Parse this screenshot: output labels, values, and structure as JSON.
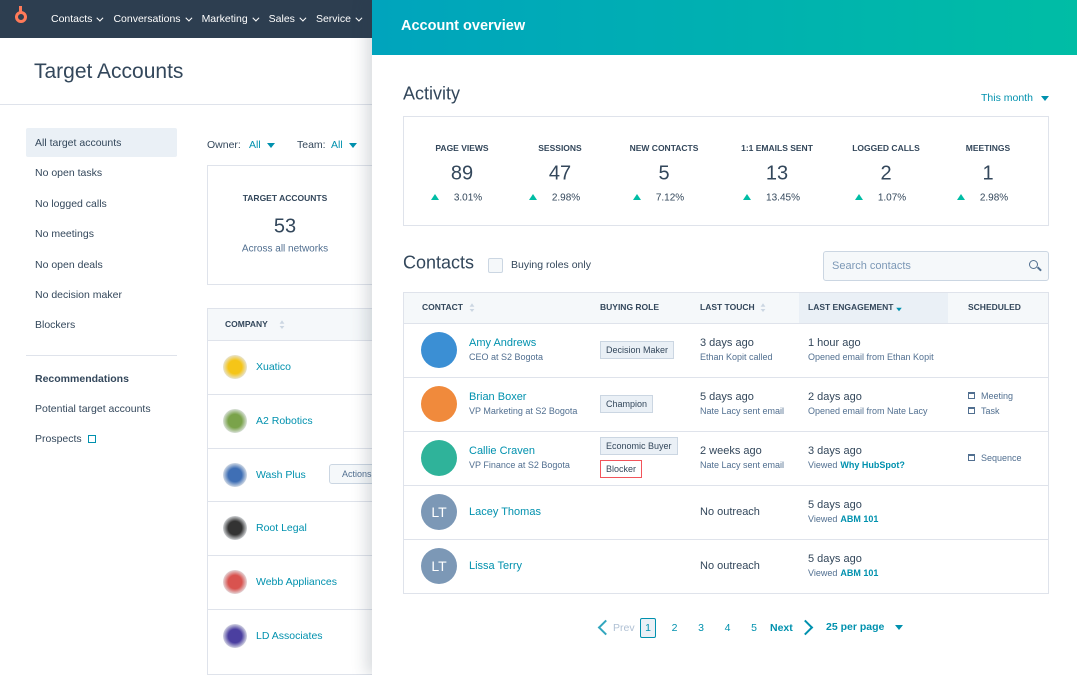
{
  "nav": {
    "items": [
      "Contacts",
      "Conversations",
      "Marketing",
      "Sales",
      "Service"
    ]
  },
  "page": {
    "title": "Target Accounts",
    "sidebar": {
      "filters": [
        "All target accounts",
        "No open tasks",
        "No logged calls",
        "No meetings",
        "No open deals",
        "No decision maker",
        "Blockers"
      ],
      "recommendations_heading": "Recommendations",
      "recommendations": [
        "Potential target accounts",
        "Prospects"
      ]
    },
    "filter_bar": {
      "owner_label": "Owner:",
      "owner_value": "All",
      "team_label": "Team:",
      "team_value": "All"
    },
    "summary": {
      "label": "TARGET ACCOUNTS",
      "value": "53",
      "sub": "Across all networks"
    },
    "companies": {
      "header": "COMPANY",
      "rows": [
        "Xuatico",
        "A2 Robotics",
        "Wash Plus",
        "Root Legal",
        "Webb Appliances",
        "LD Associates"
      ],
      "actions_button": "Actions"
    }
  },
  "panel": {
    "title": "Account overview",
    "activity": {
      "heading": "Activity",
      "period": "This month",
      "metrics": [
        {
          "label": "PAGE VIEWS",
          "value": "89",
          "change": "3.01%"
        },
        {
          "label": "SESSIONS",
          "value": "47",
          "change": "2.98%"
        },
        {
          "label": "NEW CONTACTS",
          "value": "5",
          "change": "7.12%"
        },
        {
          "label": "1:1 EMAILS SENT",
          "value": "13",
          "change": "13.45%"
        },
        {
          "label": "LOGGED CALLS",
          "value": "2",
          "change": "1.07%"
        },
        {
          "label": "MEETINGS",
          "value": "1",
          "change": "2.98%"
        }
      ]
    },
    "contacts": {
      "heading": "Contacts",
      "checkbox_label": "Buying roles only",
      "search_placeholder": "Search contacts",
      "columns": [
        "CONTACT",
        "BUYING ROLE",
        "LAST TOUCH",
        "LAST ENGAGEMENT",
        "SCHEDULED"
      ],
      "rows": [
        {
          "name": "Amy Andrews",
          "title": "CEO at S2 Bogota",
          "roles": [
            {
              "label": "Decision Maker"
            }
          ],
          "last_touch": "3 days ago",
          "last_touch_detail": "Ethan Kopit called",
          "last_engagement": "1 hour ago",
          "engagement_detail": "Opened email from Ethan Kopit",
          "scheduled": []
        },
        {
          "name": "Brian Boxer",
          "title": "VP Marketing at S2 Bogota",
          "roles": [
            {
              "label": "Champion"
            }
          ],
          "last_touch": "5 days ago",
          "last_touch_detail": "Nate Lacy sent email",
          "last_engagement": "2 days ago",
          "engagement_detail": "Opened email from Nate Lacy",
          "scheduled": [
            "Meeting",
            "Task"
          ]
        },
        {
          "name": "Callie Craven",
          "title": "VP Finance at S2 Bogota",
          "roles": [
            {
              "label": "Economic Buyer"
            },
            {
              "label": "Blocker",
              "border_color": "#f2545b"
            }
          ],
          "last_touch": "2 weeks ago",
          "last_touch_detail": "Nate Lacy sent email",
          "last_engagement": "3 days ago",
          "engagement_detail": "Viewed",
          "engagement_link": "Why HubSpot?",
          "scheduled": [
            "Sequence"
          ]
        },
        {
          "name": "Lacey Thomas",
          "initials": "LT",
          "roles": [],
          "last_touch": "No outreach",
          "last_engagement": "5 days ago",
          "engagement_detail": "Viewed",
          "engagement_link": "ABM 101",
          "scheduled": []
        },
        {
          "name": "Lissa Terry",
          "initials": "LT",
          "roles": [],
          "last_touch": "No outreach",
          "last_engagement": "5 days ago",
          "engagement_detail": "Viewed",
          "engagement_link": "ABM 101",
          "scheduled": []
        }
      ]
    },
    "pagination": {
      "prev": "Prev",
      "pages": [
        "1",
        "2",
        "3",
        "4",
        "5"
      ],
      "current": 0,
      "next": "Next",
      "per_page": "25 per page"
    }
  }
}
